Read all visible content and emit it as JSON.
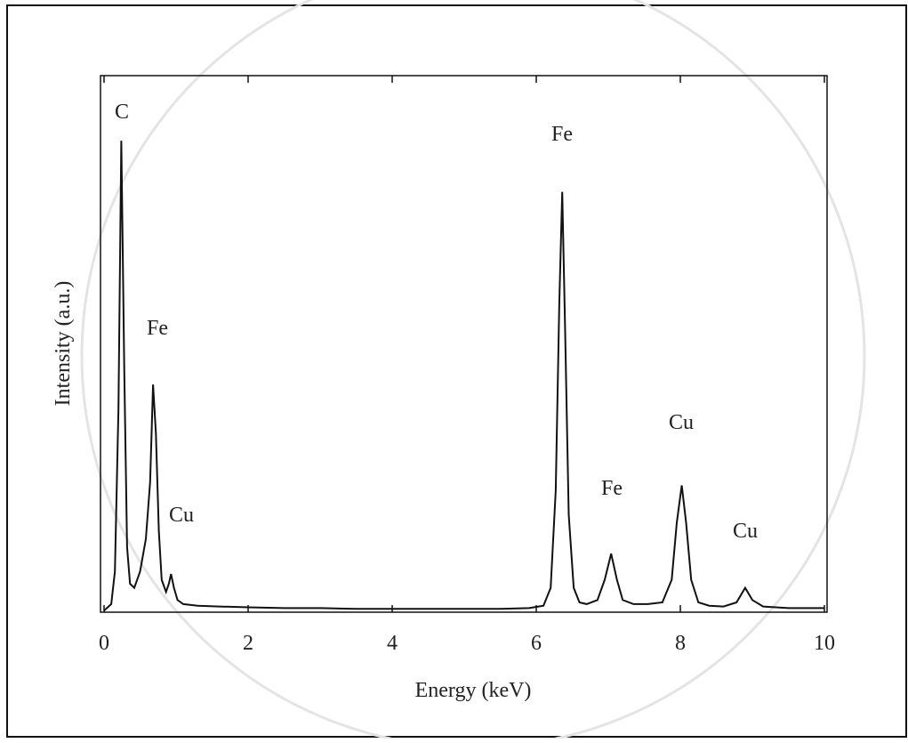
{
  "chart_data": {
    "type": "line",
    "xlabel": "Energy (keV)",
    "ylabel": "Intensity (a.u.)",
    "x": [
      0,
      0.1,
      0.15,
      0.2,
      0.24,
      0.28,
      0.32,
      0.36,
      0.42,
      0.5,
      0.58,
      0.64,
      0.68,
      0.72,
      0.76,
      0.8,
      0.86,
      0.9,
      0.93,
      0.97,
      1.02,
      1.1,
      1.3,
      1.6,
      2,
      2.5,
      3,
      3.5,
      4,
      4.5,
      5,
      5.5,
      5.9,
      6.1,
      6.2,
      6.27,
      6.32,
      6.36,
      6.4,
      6.45,
      6.52,
      6.6,
      6.7,
      6.85,
      6.95,
      7.04,
      7.12,
      7.2,
      7.35,
      7.55,
      7.75,
      7.88,
      7.95,
      8.02,
      8.08,
      8.15,
      8.25,
      8.4,
      8.6,
      8.78,
      8.9,
      9.0,
      9.15,
      9.5,
      10
    ],
    "series": [
      {
        "color": "#111111",
        "values": [
          0.02,
          0.1,
          0.5,
          2.5,
          5.8,
          3.0,
          0.8,
          0.35,
          0.3,
          0.5,
          0.9,
          1.6,
          2.8,
          2.2,
          1.0,
          0.4,
          0.25,
          0.35,
          0.47,
          0.3,
          0.15,
          0.1,
          0.08,
          0.07,
          0.06,
          0.05,
          0.05,
          0.04,
          0.04,
          0.04,
          0.04,
          0.04,
          0.05,
          0.08,
          0.3,
          1.5,
          3.8,
          5.17,
          3.5,
          1.2,
          0.3,
          0.12,
          0.1,
          0.15,
          0.4,
          0.72,
          0.4,
          0.15,
          0.1,
          0.1,
          0.12,
          0.4,
          1.1,
          1.56,
          1.1,
          0.4,
          0.12,
          0.08,
          0.07,
          0.12,
          0.3,
          0.15,
          0.07,
          0.05,
          0.05
        ]
      }
    ],
    "xlim": [
      0,
      10
    ],
    "xticks": [
      0,
      2,
      4,
      6,
      8,
      10
    ],
    "ylim": [
      0,
      6.6
    ],
    "annotations": [
      "C",
      "Fe",
      "Cu",
      "Fe",
      "Fe",
      "Cu",
      "Cu"
    ]
  }
}
